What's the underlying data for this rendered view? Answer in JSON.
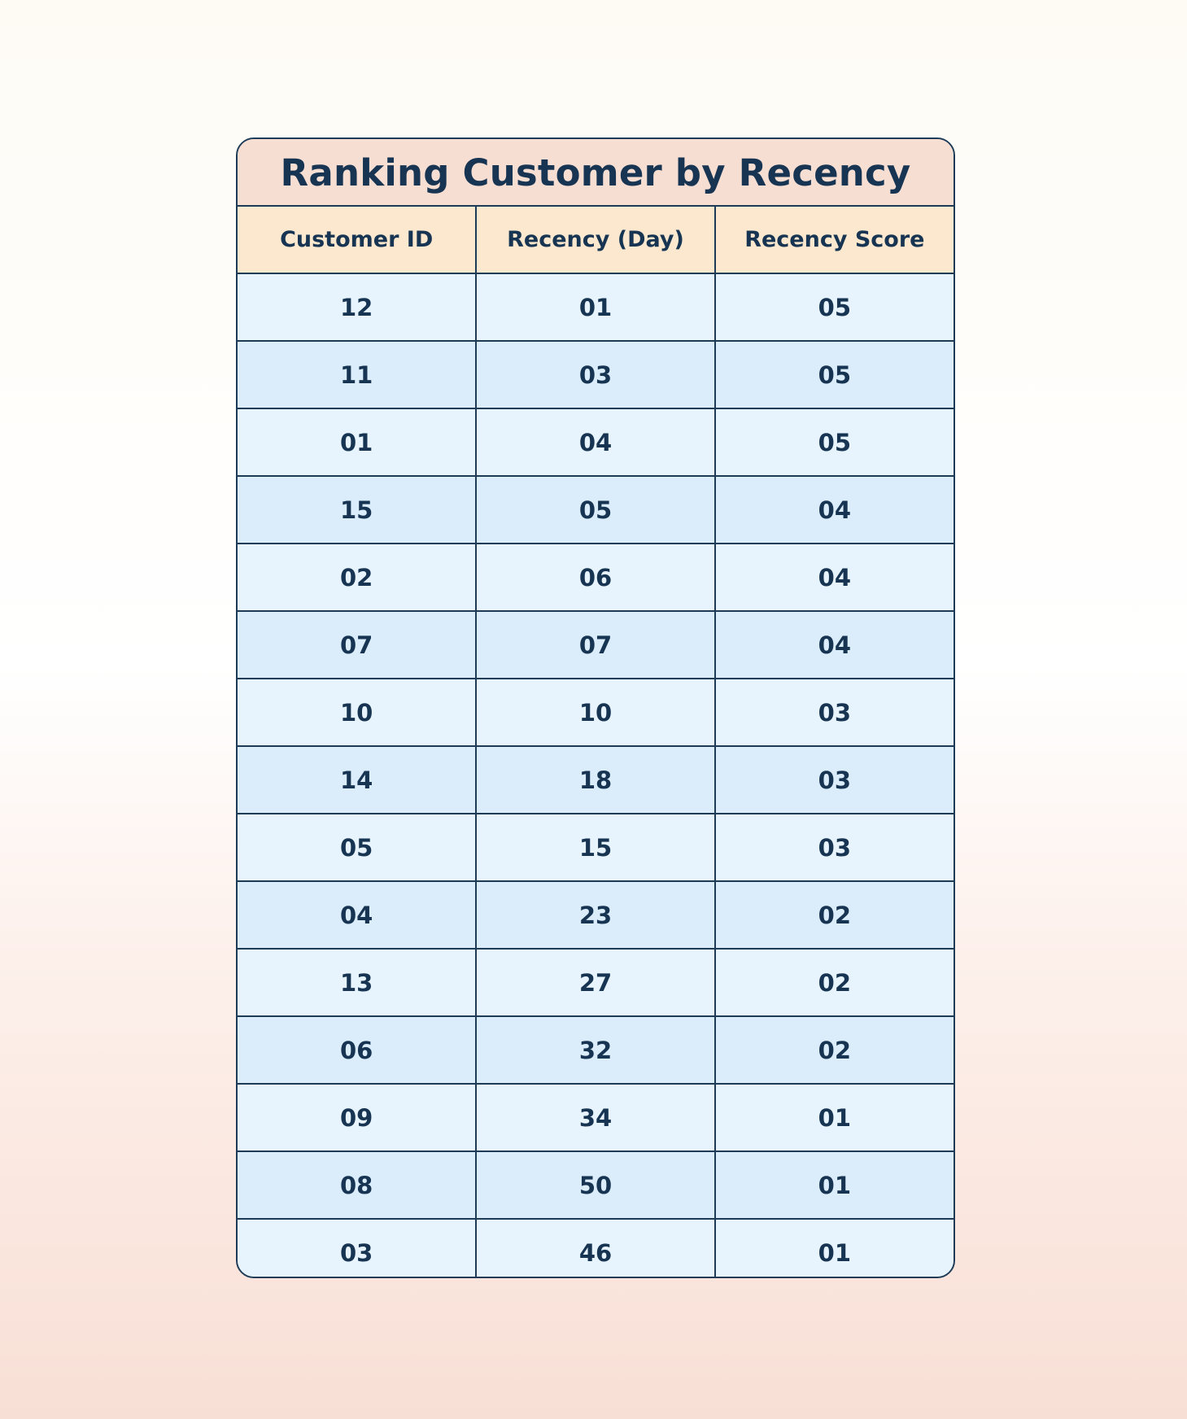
{
  "colors": {
    "title_bg": "#f7ded3",
    "header_bg": "#fbe8cf",
    "row_light": "#e8f4fd",
    "row_dark": "#dbedfb",
    "text": "#173552",
    "border": "#1d3a56"
  },
  "chart_data": {
    "type": "table",
    "title": "Ranking Customer by Recency",
    "columns": [
      "Customer ID",
      "Recency (Day)",
      "Recency Score"
    ],
    "rows": [
      [
        "12",
        "01",
        "05"
      ],
      [
        "11",
        "03",
        "05"
      ],
      [
        "01",
        "04",
        "05"
      ],
      [
        "15",
        "05",
        "04"
      ],
      [
        "02",
        "06",
        "04"
      ],
      [
        "07",
        "07",
        "04"
      ],
      [
        "10",
        "10",
        "03"
      ],
      [
        "14",
        "18",
        "03"
      ],
      [
        "05",
        "15",
        "03"
      ],
      [
        "04",
        "23",
        "02"
      ],
      [
        "13",
        "27",
        "02"
      ],
      [
        "06",
        "32",
        "02"
      ],
      [
        "09",
        "34",
        "01"
      ],
      [
        "08",
        "50",
        "01"
      ],
      [
        "03",
        "46",
        "01"
      ]
    ]
  }
}
